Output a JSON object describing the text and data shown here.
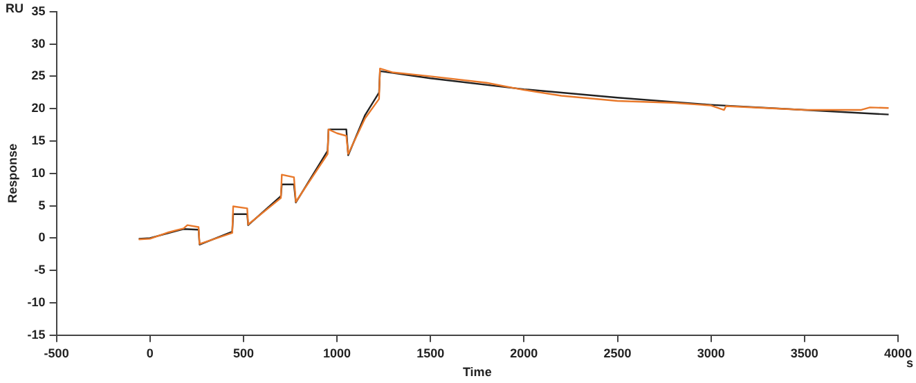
{
  "chart_data": {
    "type": "line",
    "xlabel": "Time",
    "ylabel": "Response",
    "annotations": [
      "RU",
      "s"
    ],
    "xlim": [
      -500,
      4000
    ],
    "xticks": [
      -500,
      0,
      500,
      1000,
      1500,
      2000,
      2500,
      3000,
      3500,
      4000
    ],
    "ylim": [
      -15,
      35
    ],
    "yticks": [
      -15,
      -10,
      -5,
      0,
      5,
      10,
      15,
      20,
      25,
      30,
      35
    ],
    "grid": false,
    "legend": false,
    "marker": "none",
    "line_style": "solid",
    "series": [
      {
        "color": "#e8782a",
        "x": [
          -60,
          0,
          100,
          180,
          200,
          260,
          265,
          440,
          445,
          520,
          525,
          700,
          705,
          770,
          780,
          950,
          955,
          1000,
          1050,
          1060,
          1150,
          1225,
          1230,
          1300,
          1500,
          1800,
          2000,
          2200,
          2500,
          2800,
          3000,
          3070,
          3080,
          3500,
          3800,
          3850,
          3950
        ],
        "values": [
          -0.2,
          -0.1,
          0.9,
          1.5,
          2.0,
          1.7,
          -0.9,
          0.8,
          4.9,
          4.6,
          2.1,
          6.2,
          9.8,
          9.4,
          5.6,
          13,
          16.8,
          16.2,
          15.8,
          13,
          18.5,
          21.5,
          26.2,
          25.6,
          25,
          24,
          22.9,
          22,
          21.2,
          20.9,
          20.5,
          19.8,
          20.4,
          19.8,
          19.8,
          20.2,
          20.1
        ]
      },
      {
        "color": "#222222",
        "x": [
          -60,
          0,
          180,
          260,
          265,
          440,
          445,
          520,
          525,
          700,
          705,
          770,
          780,
          950,
          955,
          1050,
          1060,
          1150,
          1225,
          1230,
          1500,
          2000,
          2500,
          3000,
          3500,
          3950
        ],
        "values": [
          -0.1,
          0,
          1.4,
          1.3,
          -1,
          1,
          3.7,
          3.7,
          2,
          6.5,
          8.3,
          8.3,
          5.5,
          13.5,
          16.8,
          16.8,
          12.8,
          19,
          22.5,
          25.8,
          24.7,
          23,
          21.7,
          20.6,
          19.8,
          19.1
        ]
      }
    ]
  }
}
